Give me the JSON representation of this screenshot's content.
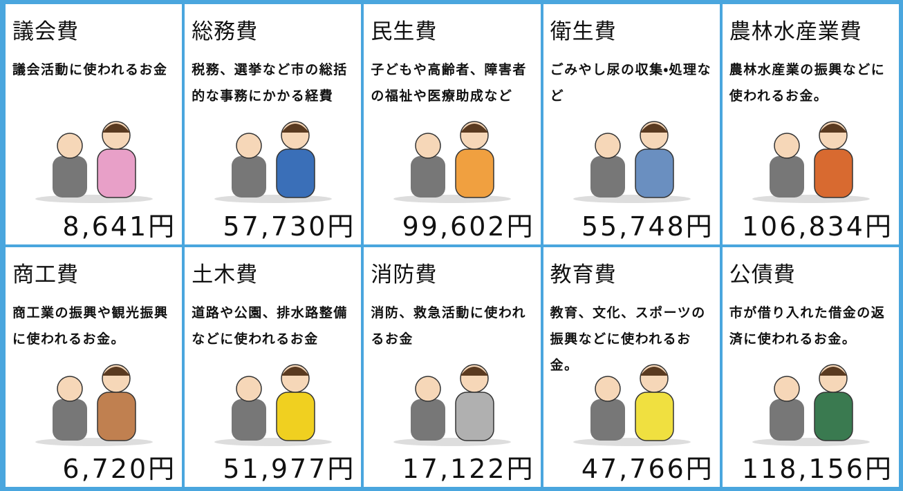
{
  "cards": [
    {
      "title": "議会費",
      "description": "議会活動に使われるお金",
      "amount": "8,641円"
    },
    {
      "title": "総務費",
      "description": "税務、選挙など市の総括的な事務にかかる経費",
      "amount": "57,730円"
    },
    {
      "title": "民生費",
      "description": "子どもや高齢者、障害者の福祉や医療助成など",
      "amount": "99,602円"
    },
    {
      "title": "衛生費",
      "description": "ごみやし尿の収集・処理など",
      "amount": "55,748円"
    },
    {
      "title": "農林水産業費",
      "description": "農林水産業の振興などに使われるお金。",
      "amount": "106,834円"
    },
    {
      "title": "商工費",
      "description": "商工業の振興や観光振興に使われるお金。",
      "amount": "6,720円"
    },
    {
      "title": "土木費",
      "description": "道路や公園、排水路整備などに使われるお金",
      "amount": "51,977円"
    },
    {
      "title": "消防費",
      "description": "消防、救急活動に使われるお金",
      "amount": "17,122円"
    },
    {
      "title": "教育費",
      "description": "教育、文化、スポーツの振興などに使われるお金。",
      "amount": "47,766円"
    },
    {
      "title": "公債費",
      "description": "市が借り入れた借金の返済に使われるお金。",
      "amount": "118,156円"
    }
  ]
}
